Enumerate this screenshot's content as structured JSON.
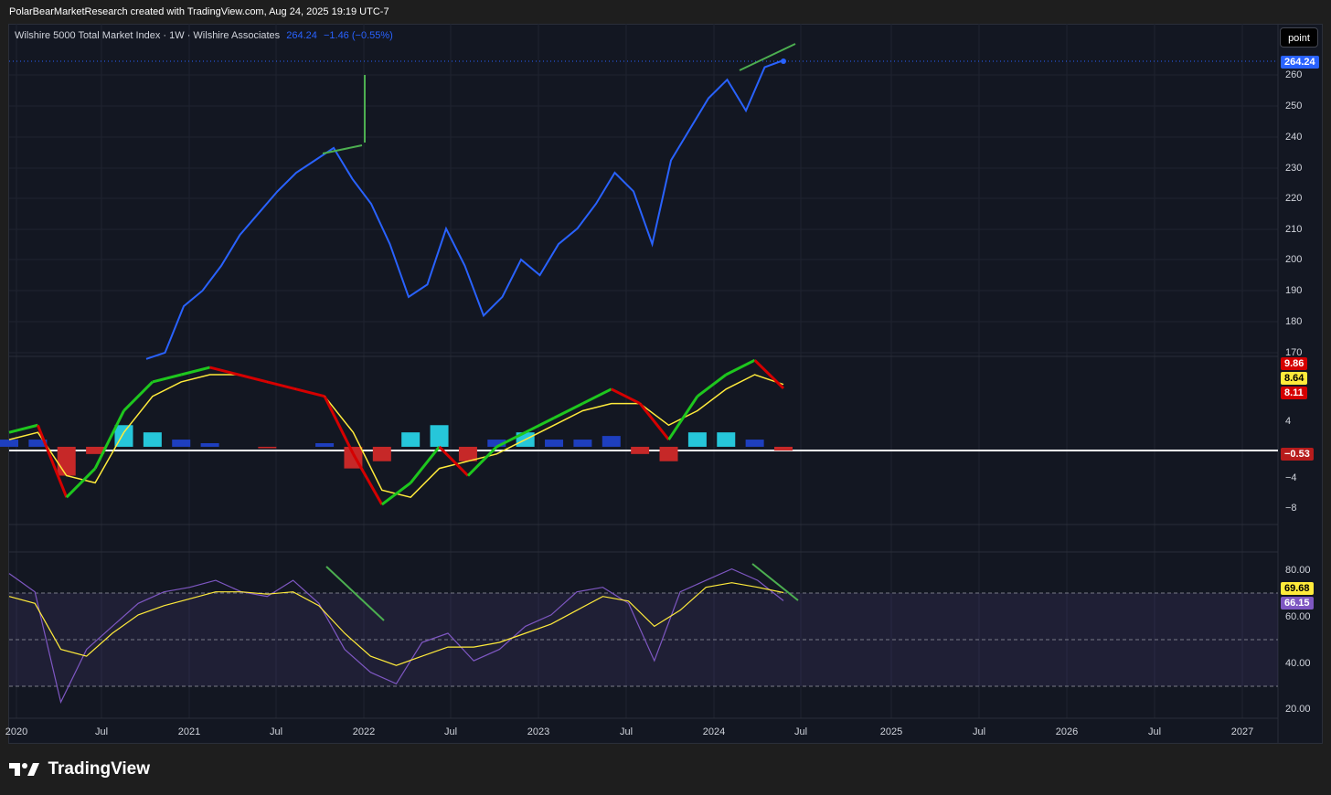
{
  "header": {
    "title": "PolarBearMarketResearch created with TradingView.com, Aug 24, 2025 19:19 UTC-7"
  },
  "legend": {
    "symbol": "Wilshire 5000 Total Market Index · 1W · Wilshire Associates",
    "price": "264.24",
    "change": "−1.46 (−0.55%)"
  },
  "toolbar": {
    "point_label": "point"
  },
  "price_axis": {
    "ticks": [
      "260",
      "250",
      "240",
      "230",
      "220",
      "210",
      "200",
      "190",
      "180",
      "170"
    ],
    "last_price": "264.24"
  },
  "macd_axis": {
    "ticks": [
      "4",
      "−4",
      "−8"
    ],
    "tags": [
      "9.86",
      "8.64",
      "8.11",
      "−0.53"
    ]
  },
  "rsi_axis": {
    "ticks": [
      "80.00",
      "60.00",
      "40.00",
      "20.00"
    ],
    "tags": [
      "69.68",
      "66.15"
    ]
  },
  "time_axis": {
    "labels": [
      "2020",
      "Jul",
      "2021",
      "Jul",
      "2022",
      "Jul",
      "2023",
      "Jul",
      "2024",
      "Jul",
      "2025",
      "Jul",
      "2026",
      "Jul",
      "2027"
    ]
  },
  "footer": {
    "brand": "TradingView"
  },
  "colors": {
    "price_line": "#2962ff",
    "trend_green": "#4caf50",
    "macd_green": "#1ec71e",
    "macd_red": "#d50000",
    "signal_yellow": "#ffeb3b",
    "rsi_purple": "#7e57c2"
  },
  "chart_data": [
    {
      "type": "line",
      "series": [
        {
          "values": [
            168,
            170,
            185,
            190,
            198,
            208,
            215,
            222,
            228,
            232,
            236,
            226,
            218,
            205,
            188,
            192,
            210,
            198,
            182,
            188,
            200,
            195,
            205,
            210,
            218,
            228,
            222,
            205,
            232,
            242,
            252,
            258,
            248,
            262,
            264.24
          ]
        }
      ],
      "ylim": [
        170,
        266
      ]
    },
    {
      "type": "line",
      "series": [
        {
          "values": [
            2,
            3,
            -7,
            -3,
            5,
            9,
            10,
            11,
            10,
            9,
            8,
            7,
            -1,
            -8,
            -5,
            0,
            -4,
            0,
            2,
            4,
            6,
            8,
            6,
            1,
            7,
            10,
            12,
            8.11
          ]
        },
        {
          "values": [
            1,
            2,
            -4,
            -5,
            2,
            7,
            9,
            10,
            10,
            9,
            8,
            7,
            2,
            -6,
            -7,
            -3,
            -2,
            -1,
            1,
            3,
            5,
            6,
            6,
            3,
            5,
            8,
            10,
            8.64
          ]
        }
      ],
      "histogram": [
        1,
        1,
        -4,
        -1,
        3,
        2,
        1,
        0.5,
        0,
        -0.2,
        0,
        0.5,
        -3,
        -2,
        2,
        3,
        -2,
        1,
        2,
        1,
        1,
        1.5,
        -1,
        -2,
        2,
        2,
        1,
        -0.53
      ],
      "ylim": [
        -9,
        10
      ]
    },
    {
      "type": "line",
      "series": [
        {
          "values": [
            78,
            70,
            22,
            45,
            55,
            65,
            70,
            72,
            75,
            70,
            68,
            75,
            65,
            45,
            35,
            30,
            48,
            52,
            40,
            45,
            55,
            60,
            70,
            72,
            65,
            40,
            70,
            75,
            80,
            75,
            66.15
          ]
        },
        {
          "values": [
            68,
            65,
            45,
            42,
            52,
            60,
            64,
            67,
            70,
            70,
            69,
            70,
            64,
            52,
            42,
            38,
            42,
            46,
            46,
            48,
            52,
            56,
            62,
            68,
            66,
            55,
            62,
            72,
            74,
            72,
            69.68
          ]
        }
      ],
      "ylim": [
        15,
        85
      ]
    }
  ]
}
